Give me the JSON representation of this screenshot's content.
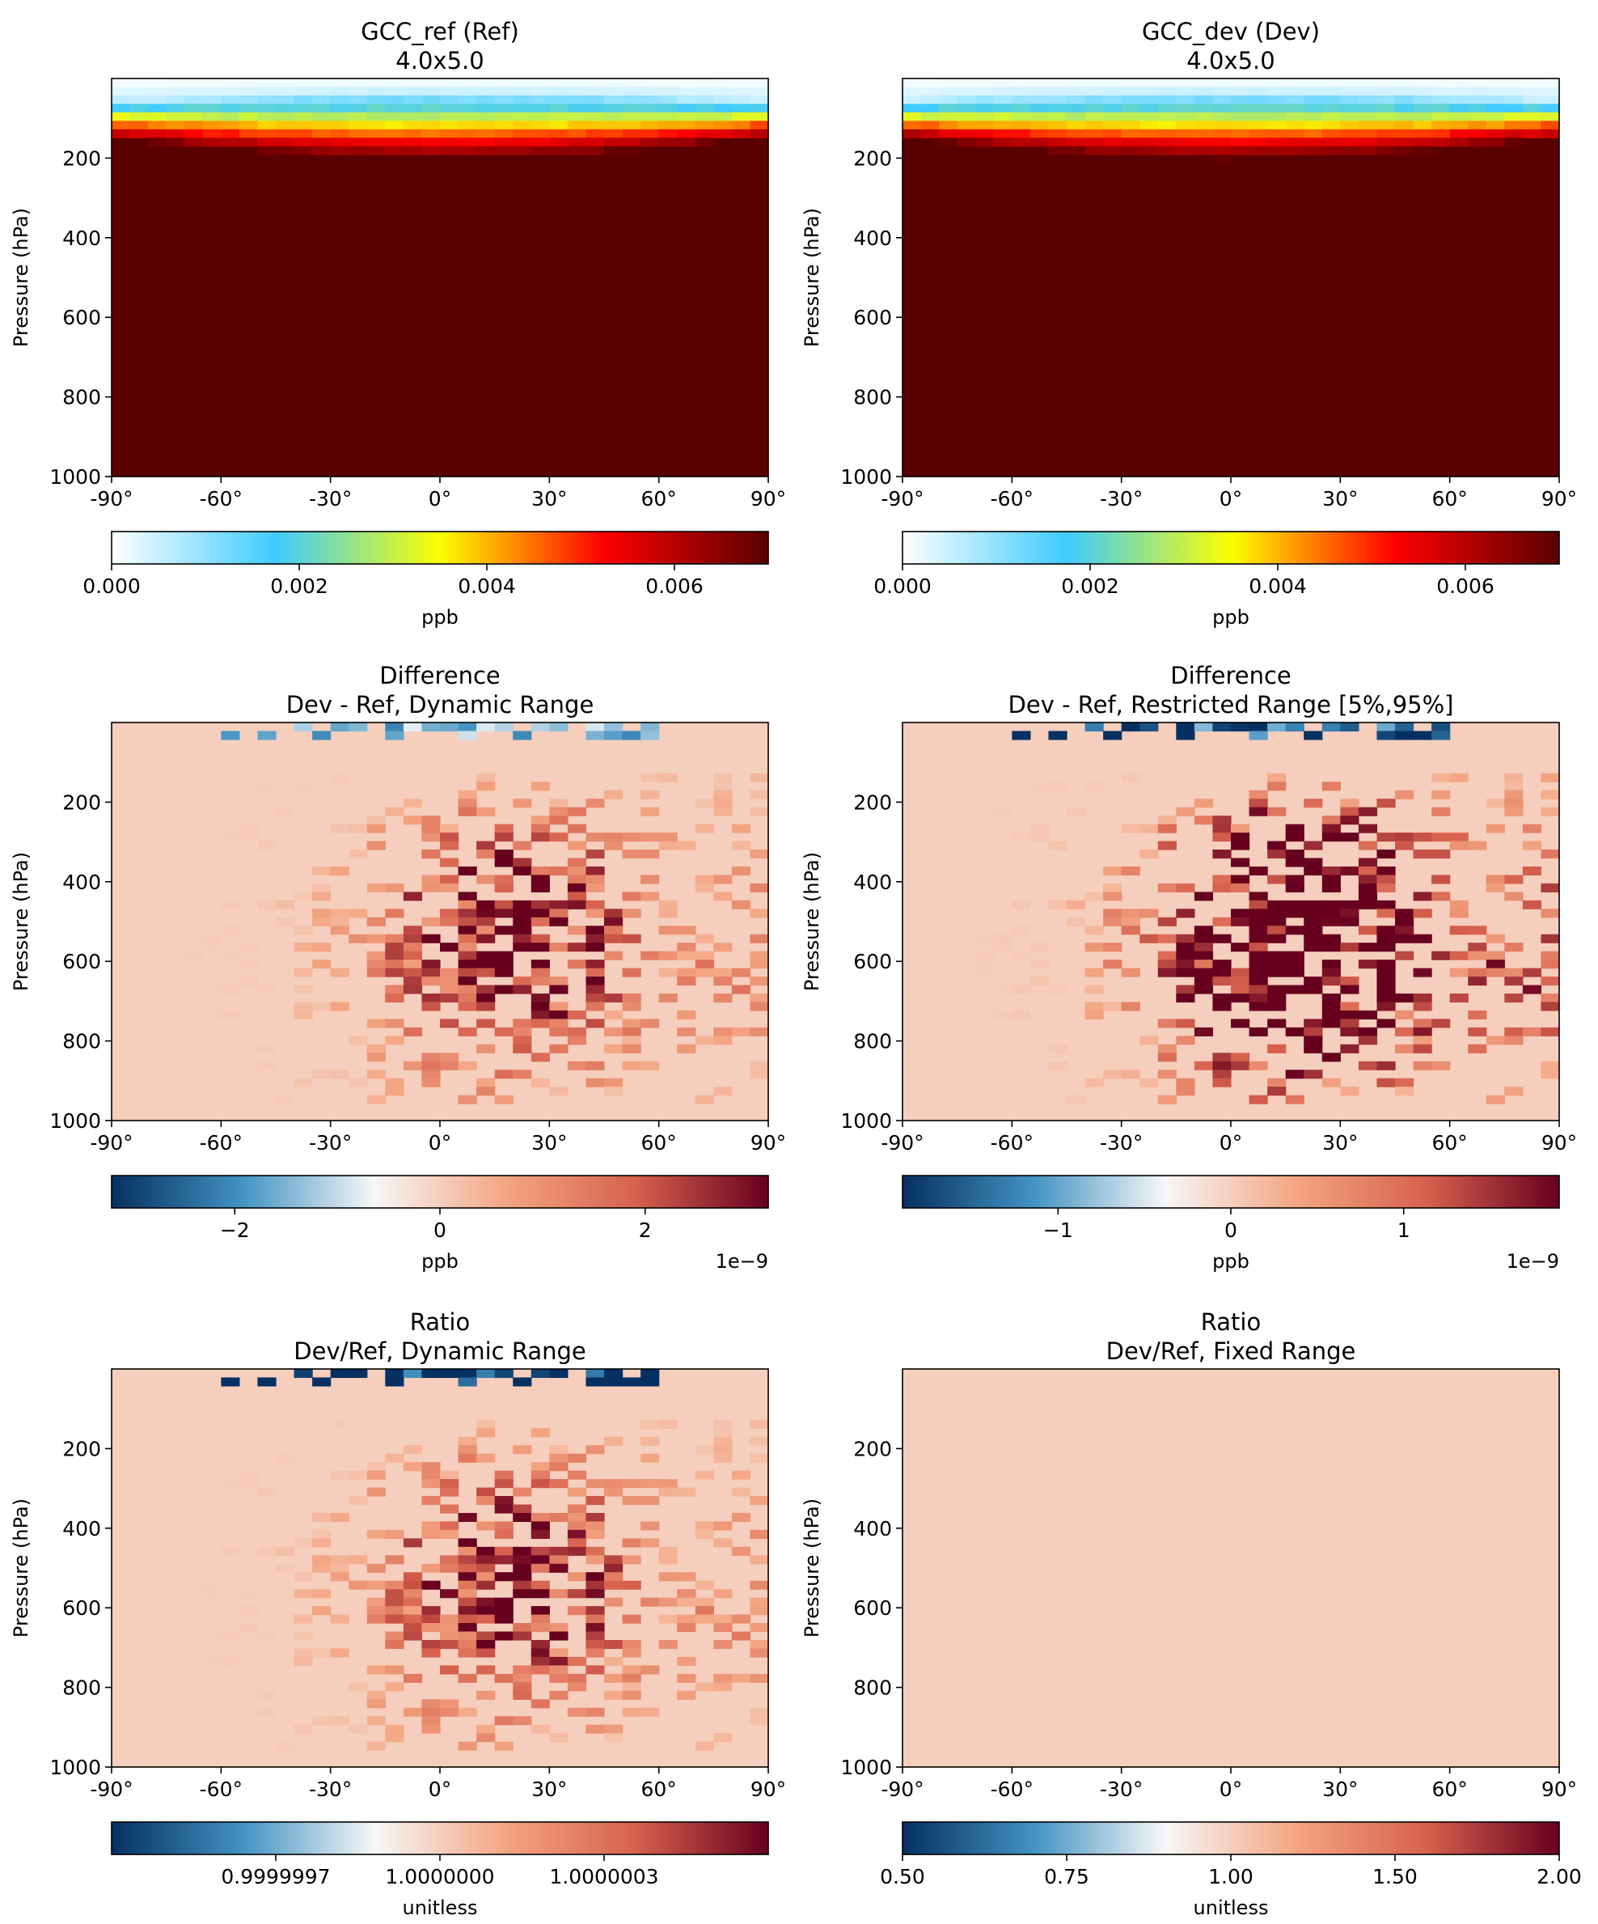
{
  "chart_data": [
    {
      "type": "heatmap",
      "title": [
        "GCC_ref (Ref)",
        "4.0x5.0"
      ],
      "ylabel": "Pressure (hPa)",
      "xticks": [
        "-90°",
        "-60°",
        "-30°",
        "0°",
        "30°",
        "60°",
        "90°"
      ],
      "yticks": [
        "200",
        "400",
        "600",
        "800",
        "1000"
      ],
      "xlim": [
        -90,
        90
      ],
      "ylim": [
        1000,
        0
      ],
      "colormap": [
        "#ffffff",
        "#3ecbff",
        "#fbff00",
        "#ff0000",
        "#5a0000"
      ],
      "colorbar_ticks": [
        "0.000",
        "0.002",
        "0.004",
        "0.006"
      ],
      "colorbar_label": "ppb",
      "colorbar_range": [
        0.0,
        0.007
      ],
      "field_summary": {
        "upper_levels_white_hPa": [
          0,
          60
        ],
        "transition_hPa": [
          60,
          170
        ],
        "bulk_value_ppb": 0.0069
      }
    },
    {
      "type": "heatmap",
      "title": [
        "GCC_dev (Dev)",
        "4.0x5.0"
      ],
      "ylabel": "Pressure (hPa)",
      "xticks": [
        "-90°",
        "-60°",
        "-30°",
        "0°",
        "30°",
        "60°",
        "90°"
      ],
      "yticks": [
        "200",
        "400",
        "600",
        "800",
        "1000"
      ],
      "xlim": [
        -90,
        90
      ],
      "ylim": [
        1000,
        0
      ],
      "colormap": [
        "#ffffff",
        "#3ecbff",
        "#fbff00",
        "#ff0000",
        "#5a0000"
      ],
      "colorbar_ticks": [
        "0.000",
        "0.002",
        "0.004",
        "0.006"
      ],
      "colorbar_label": "ppb",
      "colorbar_range": [
        0.0,
        0.007
      ],
      "field_summary": {
        "upper_levels_white_hPa": [
          0,
          60
        ],
        "transition_hPa": [
          60,
          170
        ],
        "bulk_value_ppb": 0.0069
      }
    },
    {
      "type": "heatmap",
      "title": [
        "Difference",
        "Dev - Ref, Dynamic Range"
      ],
      "ylabel": "Pressure (hPa)",
      "xticks": [
        "-90°",
        "-60°",
        "-30°",
        "0°",
        "30°",
        "60°",
        "90°"
      ],
      "yticks": [
        "200",
        "400",
        "600",
        "800",
        "1000"
      ],
      "xlim": [
        -90,
        90
      ],
      "ylim": [
        1000,
        0
      ],
      "colormap": [
        "#053061",
        "#4393c3",
        "#f7f7f7",
        "#f4a582",
        "#d6604d",
        "#67001f"
      ],
      "colorbar_ticks": [
        "−2",
        "0",
        "2"
      ],
      "colorbar_label": "ppb",
      "colorbar_offset": "1e−9",
      "colorbar_range": [
        -3.2,
        3.2
      ],
      "field_summary": {
        "max_abs_1e-9_ppb": 3.2,
        "positive_core_lon": [
          -10,
          50
        ],
        "positive_core_hPa": [
          150,
          900
        ]
      }
    },
    {
      "type": "heatmap",
      "title": [
        "Difference",
        "Dev - Ref, Restricted Range [5%,95%]"
      ],
      "ylabel": "Pressure (hPa)",
      "xticks": [
        "-90°",
        "-60°",
        "-30°",
        "0°",
        "30°",
        "60°",
        "90°"
      ],
      "yticks": [
        "200",
        "400",
        "600",
        "800",
        "1000"
      ],
      "xlim": [
        -90,
        90
      ],
      "ylim": [
        1000,
        0
      ],
      "colormap": [
        "#053061",
        "#4393c3",
        "#f7f7f7",
        "#f4a582",
        "#d6604d",
        "#67001f"
      ],
      "colorbar_ticks": [
        "−1",
        "0",
        "1"
      ],
      "colorbar_label": "ppb",
      "colorbar_offset": "1e−9",
      "colorbar_range": [
        -1.9,
        1.9
      ],
      "field_summary": {
        "max_abs_1e-9_ppb": 1.9,
        "positive_core_lon": [
          -10,
          50
        ],
        "positive_core_hPa": [
          150,
          900
        ]
      }
    },
    {
      "type": "heatmap",
      "title": [
        "Ratio",
        "Dev/Ref, Dynamic Range"
      ],
      "ylabel": "Pressure (hPa)",
      "xticks": [
        "-90°",
        "-60°",
        "-30°",
        "0°",
        "30°",
        "60°",
        "90°"
      ],
      "yticks": [
        "200",
        "400",
        "600",
        "800",
        "1000"
      ],
      "xlim": [
        -90,
        90
      ],
      "ylim": [
        1000,
        0
      ],
      "colormap": [
        "#053061",
        "#4393c3",
        "#f7f7f7",
        "#f4a582",
        "#d6604d",
        "#67001f"
      ],
      "colorbar_ticks": [
        "0.9999997",
        "1.0000000",
        "1.0000003"
      ],
      "colorbar_label": "unitless",
      "colorbar_range": [
        0.9999994,
        1.0000006
      ],
      "field_summary": {
        "negative_band_hPa": [
          0,
          40
        ],
        "positive_core_lon": [
          -10,
          50
        ],
        "positive_core_hPa": [
          150,
          900
        ]
      }
    },
    {
      "type": "heatmap",
      "title": [
        "Ratio",
        "Dev/Ref, Fixed Range"
      ],
      "ylabel": "Pressure (hPa)",
      "xticks": [
        "-90°",
        "-60°",
        "-30°",
        "0°",
        "30°",
        "60°",
        "90°"
      ],
      "yticks": [
        "200",
        "400",
        "600",
        "800",
        "1000"
      ],
      "xlim": [
        -90,
        90
      ],
      "ylim": [
        1000,
        0
      ],
      "colormap": [
        "#053061",
        "#4393c3",
        "#f7f7f7",
        "#f4a582",
        "#d6604d",
        "#67001f"
      ],
      "colorbar_ticks": [
        "0.50",
        "0.75",
        "1.00",
        "1.50",
        "2.00"
      ],
      "colorbar_label": "unitless",
      "colorbar_range": [
        0.5,
        2.0
      ],
      "field_summary": {
        "uniform_value": 1.0
      }
    }
  ]
}
